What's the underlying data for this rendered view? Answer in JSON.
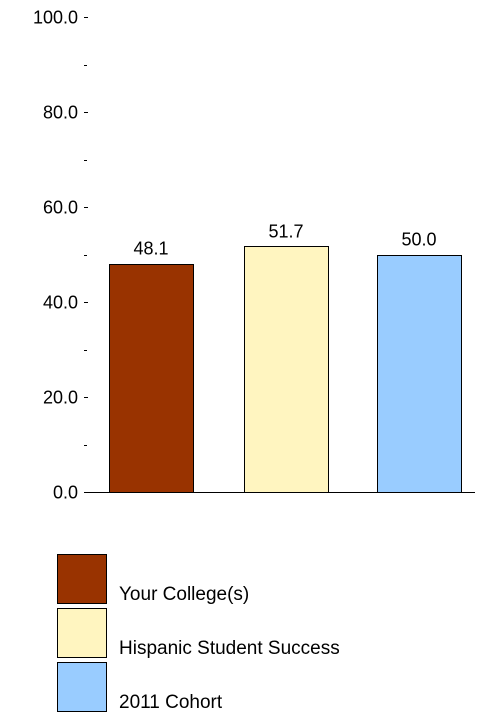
{
  "chart_data": {
    "type": "bar",
    "categories": [
      "Your College(s)",
      "Hispanic Student Success",
      "2011 Cohort"
    ],
    "values": [
      48.1,
      51.7,
      50.0
    ],
    "value_labels": [
      "48.1",
      "51.7",
      "50.0"
    ],
    "colors": [
      "#993300",
      "#FFF5C0",
      "#99CCFF"
    ],
    "ylim": [
      0,
      100
    ],
    "major_ticks": [
      0,
      20,
      40,
      60,
      80,
      100
    ],
    "major_tick_labels": [
      "0.0",
      "20.0",
      "40.0",
      "60.0",
      "80.0",
      "100.0"
    ],
    "minor_ticks": [
      10,
      30,
      50,
      70,
      90
    ],
    "grid": false,
    "legend_position": "bottom-left",
    "title": "",
    "xlabel": "",
    "ylabel": ""
  },
  "legend": {
    "items": [
      {
        "label": "Your College(s)",
        "color": "#993300"
      },
      {
        "label": "Hispanic Student Success",
        "color": "#FFF5C0"
      },
      {
        "label": "2011 Cohort",
        "color": "#99CCFF"
      }
    ]
  }
}
